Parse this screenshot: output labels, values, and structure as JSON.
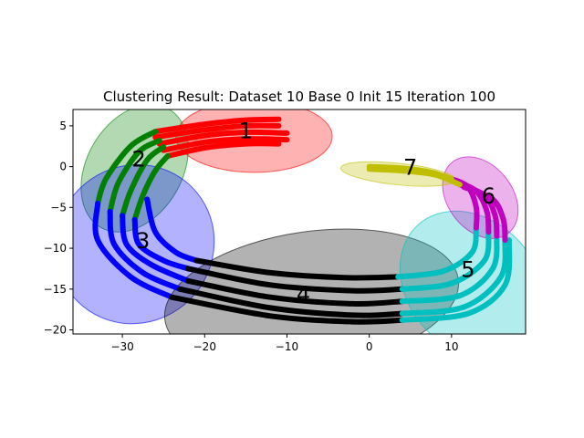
{
  "chart_data": {
    "type": "scatter",
    "title": "Clustering Result: Dataset 10 Base 0 Init 15 Iteration 100",
    "xlabel": "",
    "ylabel": "",
    "xlim": [
      -36,
      19
    ],
    "ylim": [
      -20.5,
      7
    ],
    "xticks": [
      -30,
      -20,
      -10,
      0,
      10
    ],
    "yticks": [
      5,
      0,
      -5,
      -10,
      -15,
      -20
    ],
    "grid": false,
    "clusters": [
      {
        "label": "1",
        "color": "#ff0000",
        "label_pos": [
          -15,
          4.5
        ],
        "ellipse": {
          "center": [
            -14,
            3.7
          ],
          "rx": 9.5,
          "ry": 2.0,
          "angle": 0
        },
        "curves": [
          [
            [
              -26,
              4.3
            ],
            [
              -20,
              5.2
            ],
            [
              -15,
              5.7
            ],
            [
              -11,
              5.8
            ]
          ],
          [
            [
              -26,
              3.6
            ],
            [
              -20,
              4.5
            ],
            [
              -15,
              5.0
            ],
            [
              -11,
              5.0
            ]
          ],
          [
            [
              -25.5,
              2.8
            ],
            [
              -20,
              3.8
            ],
            [
              -15,
              4.2
            ],
            [
              -10,
              4.1
            ]
          ],
          [
            [
              -25,
              2.0
            ],
            [
              -20,
              3.0
            ],
            [
              -15,
              3.4
            ],
            [
              -10,
              3.3
            ]
          ],
          [
            [
              -24.5,
              1.3
            ],
            [
              -20,
              2.3
            ],
            [
              -15,
              2.8
            ],
            [
              -11,
              2.8
            ]
          ]
        ]
      },
      {
        "label": "2",
        "color": "#008000",
        "label_pos": [
          -28,
          1.0
        ],
        "ellipse": {
          "center": [
            -28.5,
            -0.2
          ],
          "rx": 5.8,
          "ry": 3.8,
          "angle": -30
        },
        "curves": [
          [
            [
              -33,
              -4.5
            ],
            [
              -32,
              -1.5
            ],
            [
              -29,
              2.5
            ],
            [
              -26,
              4.3
            ]
          ],
          [
            [
              -31.5,
              -5.5
            ],
            [
              -30.5,
              -2.0
            ],
            [
              -28,
              1.8
            ],
            [
              -25.5,
              3.2
            ]
          ],
          [
            [
              -30,
              -6.0
            ],
            [
              -29,
              -3.0
            ],
            [
              -27,
              0.8
            ],
            [
              -25,
              2.4
            ]
          ],
          [
            [
              -28.5,
              -6.5
            ],
            [
              -27.5,
              -3.5
            ],
            [
              -26,
              -0.5
            ],
            [
              -24.5,
              1.3
            ]
          ]
        ]
      },
      {
        "label": "3",
        "color": "#0000ff",
        "label_pos": [
          -27.5,
          -9.0
        ],
        "ellipse": {
          "center": [
            -28.5,
            -9.5
          ],
          "rx": 9.5,
          "ry": 4.5,
          "angle": -45
        },
        "curves": [
          [
            [
              -33,
              -4.5
            ],
            [
              -33,
              -9
            ],
            [
              -29,
              -13.5
            ],
            [
              -24,
              -16
            ]
          ],
          [
            [
              -31.5,
              -5.5
            ],
            [
              -31,
              -9.5
            ],
            [
              -27.5,
              -13
            ],
            [
              -23,
              -15
            ]
          ],
          [
            [
              -30,
              -6
            ],
            [
              -29.5,
              -9.5
            ],
            [
              -26.5,
              -12
            ],
            [
              -22,
              -14
            ]
          ],
          [
            [
              -28.5,
              -6.5
            ],
            [
              -28,
              -9.5
            ],
            [
              -25,
              -11.5
            ],
            [
              -22,
              -12.5
            ]
          ],
          [
            [
              -27,
              -4
            ],
            [
              -26,
              -8
            ],
            [
              -23.5,
              -10.5
            ],
            [
              -21,
              -11.5
            ]
          ]
        ]
      },
      {
        "label": "4",
        "color": "#000000",
        "label_pos": [
          -8,
          -15.5
        ],
        "ellipse": {
          "center": [
            -7,
            -16.3
          ],
          "rx": 18.0,
          "ry": 3.8,
          "angle": 8
        },
        "curves": [
          [
            [
              -21,
              -11.5
            ],
            [
              -12,
              -13
            ],
            [
              -3,
              -13.6
            ],
            [
              3.5,
              -13.5
            ]
          ],
          [
            [
              -22,
              -12.5
            ],
            [
              -12,
              -14.5
            ],
            [
              -2,
              -15.2
            ],
            [
              4,
              -15.0
            ]
          ],
          [
            [
              -22,
              -14
            ],
            [
              -12,
              -16
            ],
            [
              -2,
              -16.8
            ],
            [
              4,
              -16.5
            ]
          ],
          [
            [
              -23,
              -15
            ],
            [
              -12,
              -17.3
            ],
            [
              -2,
              -18.2
            ],
            [
              4,
              -18.0
            ]
          ],
          [
            [
              -24,
              -16
            ],
            [
              -12,
              -18.3
            ],
            [
              -2,
              -19.0
            ],
            [
              4,
              -18.8
            ]
          ]
        ]
      },
      {
        "label": "5",
        "color": "#00bfbf",
        "label_pos": [
          12,
          -12.5
        ],
        "ellipse": {
          "center": [
            12.5,
            -14.5
          ],
          "rx": 7.8,
          "ry": 4.5,
          "angle": 42
        },
        "curves": [
          [
            [
              3.5,
              -13.5
            ],
            [
              9,
              -12.8
            ],
            [
              12.5,
              -10.5
            ],
            [
              13,
              -7.5
            ]
          ],
          [
            [
              4,
              -15.0
            ],
            [
              10,
              -14.3
            ],
            [
              14,
              -11.5
            ],
            [
              14.5,
              -8.0
            ]
          ],
          [
            [
              4,
              -16.5
            ],
            [
              11,
              -15.8
            ],
            [
              15,
              -12.5
            ],
            [
              15.5,
              -8.5
            ]
          ],
          [
            [
              4,
              -18.0
            ],
            [
              11.5,
              -17.2
            ],
            [
              16,
              -13.5
            ],
            [
              16.5,
              -9.0
            ]
          ],
          [
            [
              4,
              -18.8
            ],
            [
              12,
              -18.0
            ],
            [
              16.5,
              -14.5
            ],
            [
              17,
              -9.0
            ]
          ]
        ]
      },
      {
        "label": "6",
        "color": "#bf00bf",
        "label_pos": [
          14.5,
          -3.5
        ],
        "ellipse": {
          "center": [
            13.5,
            -3.8
          ],
          "rx": 5.5,
          "ry": 1.8,
          "angle": -52
        },
        "curves": [
          [
            [
              10,
              -1.5
            ],
            [
              12,
              -2.5
            ],
            [
              13,
              -5
            ],
            [
              13,
              -7.5
            ]
          ],
          [
            [
              10.5,
              -1.8
            ],
            [
              13,
              -3
            ],
            [
              14.3,
              -5.5
            ],
            [
              14.5,
              -8.0
            ]
          ],
          [
            [
              11,
              -2.2
            ],
            [
              14,
              -3.5
            ],
            [
              15.3,
              -6
            ],
            [
              15.5,
              -8.5
            ]
          ],
          [
            [
              11.5,
              -2.5
            ],
            [
              15,
              -4
            ],
            [
              16.3,
              -6.5
            ],
            [
              16.5,
              -9.0
            ]
          ]
        ]
      },
      {
        "label": "7",
        "color": "#bfbf00",
        "label_pos": [
          5,
          0
        ],
        "ellipse": {
          "center": [
            3.5,
            -0.9
          ],
          "rx": 7.0,
          "ry": 0.6,
          "angle": -6
        },
        "curves": [
          [
            [
              0,
              0
            ],
            [
              4,
              -0.2
            ],
            [
              7.5,
              -0.7
            ],
            [
              10,
              -1.5
            ]
          ],
          [
            [
              0,
              -0.3
            ],
            [
              4,
              -0.5
            ],
            [
              8,
              -1.0
            ],
            [
              11,
              -2.2
            ]
          ]
        ]
      }
    ]
  }
}
